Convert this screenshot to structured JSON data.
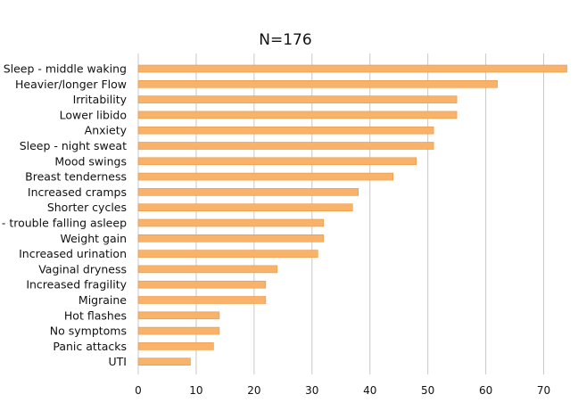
{
  "chart_data": {
    "type": "bar",
    "orientation": "horizontal",
    "title": "N=176",
    "xlabel": "",
    "ylabel": "",
    "categories": [
      "Sleep - middle waking",
      "Heavier/longer Flow",
      "Irritability",
      "Lower libido",
      "Anxiety",
      "Sleep - night sweat",
      "Mood swings",
      "Breast tenderness",
      "Increased cramps",
      "Shorter cycles",
      "Sleep - trouble falling asleep",
      "Weight gain",
      "Increased urination",
      "Vaginal dryness",
      "Increased fragility",
      "Migraine",
      "Hot flashes",
      "No symptoms",
      "Panic attacks",
      "UTI"
    ],
    "values": [
      74,
      62,
      55,
      55,
      51,
      51,
      48,
      44,
      38,
      37,
      32,
      32,
      31,
      24,
      22,
      22,
      14,
      14,
      13,
      9
    ],
    "xlim": [
      0,
      75
    ],
    "xticks": [
      0,
      10,
      20,
      30,
      40,
      50,
      60,
      70
    ],
    "grid": "vertical",
    "legend": "none",
    "colors": {
      "bar_fill": "#F9B26A",
      "bar_stroke": "#E9963F",
      "grid": "#C8C8C8",
      "text": "#111111"
    }
  }
}
